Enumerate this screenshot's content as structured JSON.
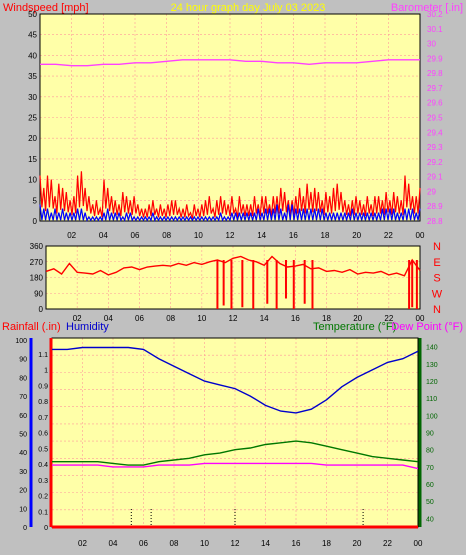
{
  "colors": {
    "background": "#c0c0c0",
    "plot_bg": "#ffffa8",
    "grid": "#ff9a9a",
    "frame": "#000000",
    "windspeed": "#ff0000",
    "windgust_fill": "#ff0000",
    "windavg_fill": "#0000ff",
    "wind_green": "#00aa00",
    "barometer": "#ff40ff",
    "title": "#ffff00",
    "direction": "#ff0000",
    "rainfall": "#ff0000",
    "humidity": "#0000cc",
    "temperature": "#007700",
    "dewpoint": "#ff00ff",
    "temp_axis": "#006600",
    "rain_axis": "#ff0000",
    "humidity_axis": "#0000ff"
  },
  "header": {
    "windspeed_label": "Windspeed [mph]",
    "title": "24 hour graph day   July 03 2023",
    "barometer_label": "Barometer [.in]"
  },
  "chart_data": [
    {
      "type": "line",
      "name": "wind-barometer",
      "x_ticks": [
        "02",
        "04",
        "06",
        "08",
        "10",
        "12",
        "14",
        "16",
        "18",
        "20",
        "22",
        "00"
      ],
      "y_left": {
        "label": "Windspeed [mph]",
        "ylim": [
          0,
          50
        ],
        "ticks": [
          "0",
          "5",
          "10",
          "15",
          "20",
          "25",
          "30",
          "35",
          "40",
          "45",
          "50"
        ]
      },
      "y_right": {
        "label": "Barometer [.in]",
        "ylim": [
          28.8,
          30.2
        ],
        "ticks": [
          "28.8",
          "28.9",
          "29",
          "29.1",
          "29.2",
          "29.3",
          "29.4",
          "29.5",
          "29.6",
          "29.7",
          "29.8",
          "29.9",
          "30",
          "30.1",
          "30.2"
        ]
      },
      "gust_peaks": [
        11,
        8,
        11,
        10,
        6,
        9,
        8,
        7,
        5,
        6,
        11,
        12,
        8,
        6,
        4,
        5,
        3,
        10,
        8,
        6,
        5,
        4,
        7,
        6,
        5,
        6,
        4,
        3,
        3,
        4,
        5,
        3,
        4,
        3,
        4,
        5,
        5,
        3,
        3,
        4,
        2,
        4,
        3,
        4,
        5,
        6,
        3,
        5,
        6,
        5,
        4,
        6,
        3,
        6,
        4,
        4,
        4,
        6,
        4,
        6,
        6,
        4,
        6,
        6,
        8,
        7,
        5,
        5,
        6,
        8,
        6,
        9,
        7,
        8,
        7,
        5,
        7,
        6,
        8,
        9,
        7,
        5,
        4,
        5,
        6,
        5,
        4,
        6,
        4,
        6,
        6,
        5,
        7,
        5,
        7,
        6,
        5,
        11,
        9,
        6,
        6,
        8
      ],
      "avg_peaks": [
        4,
        3,
        3,
        2,
        3,
        2,
        3,
        2,
        2,
        2,
        3,
        3,
        2,
        1,
        1,
        1,
        1,
        2,
        3,
        2,
        2,
        2,
        1,
        2,
        2,
        1,
        1,
        1,
        1,
        1,
        2,
        1,
        1,
        1,
        1,
        1,
        1,
        1,
        1,
        1,
        1,
        1,
        1,
        1,
        1,
        1,
        1,
        1,
        2,
        1,
        1,
        2,
        2,
        2,
        2,
        2,
        2,
        2,
        3,
        2,
        3,
        3,
        3,
        4,
        3,
        2,
        4,
        4,
        3,
        3,
        3,
        3,
        3,
        3,
        3,
        3,
        2,
        2,
        2,
        2,
        2,
        2,
        2,
        3,
        2,
        2,
        2,
        2,
        2,
        2,
        2,
        3,
        3,
        3,
        3,
        2,
        2,
        3,
        3,
        3,
        2,
        3
      ],
      "barometer": {
        "x": [
          0,
          1,
          2,
          3,
          4,
          5,
          6,
          7,
          8,
          9,
          10,
          11,
          12,
          13,
          14,
          15,
          16,
          17,
          18,
          19,
          20,
          21,
          22,
          23,
          24
        ],
        "values": [
          29.86,
          29.86,
          29.85,
          29.85,
          29.86,
          29.86,
          29.87,
          29.87,
          29.88,
          29.89,
          29.89,
          29.89,
          29.89,
          29.88,
          29.88,
          29.87,
          29.87,
          29.86,
          29.87,
          29.87,
          29.87,
          29.88,
          29.89,
          29.89,
          29.89
        ]
      }
    },
    {
      "type": "line",
      "name": "wind-direction",
      "x_ticks": [
        "02",
        "04",
        "06",
        "08",
        "10",
        "12",
        "14",
        "16",
        "18",
        "20",
        "22",
        "00"
      ],
      "y_left": {
        "ylim": [
          0,
          360
        ],
        "ticks": [
          "0",
          "90",
          "180",
          "270",
          "360"
        ]
      },
      "y_right": {
        "ticks": [
          "N",
          "W",
          "S",
          "E",
          "N"
        ]
      },
      "x": [
        0,
        0.5,
        1,
        1.5,
        2,
        2.5,
        3,
        3.5,
        4,
        4.5,
        5,
        5.5,
        6,
        6.5,
        7,
        7.5,
        8,
        8.5,
        9,
        9.5,
        10,
        10.5,
        11,
        11.5,
        12,
        12.5,
        13,
        13.5,
        14,
        14.5,
        15,
        15.5,
        16,
        16.5,
        17,
        17.5,
        18,
        18.5,
        19,
        19.5,
        20,
        20.5,
        21,
        21.5,
        22,
        22.5,
        23,
        23.5,
        24
      ],
      "values": [
        215,
        230,
        200,
        260,
        210,
        205,
        200,
        220,
        195,
        210,
        235,
        240,
        225,
        240,
        245,
        250,
        245,
        260,
        250,
        265,
        255,
        270,
        280,
        265,
        290,
        300,
        280,
        270,
        250,
        300,
        260,
        240,
        245,
        255,
        230,
        235,
        215,
        220,
        210,
        225,
        200,
        210,
        205,
        215,
        195,
        205,
        190,
        280,
        220
      ],
      "spike_x": [
        11.0,
        11.4,
        11.9,
        12.6,
        13.3,
        14.2,
        14.8,
        15.4,
        15.9,
        16.6,
        17.1,
        23.3,
        23.5,
        23.8
      ],
      "spike_to": [
        0,
        20,
        0,
        10,
        0,
        30,
        0,
        60,
        0,
        30,
        0,
        0,
        10,
        0
      ]
    },
    {
      "type": "line",
      "name": "temp-humidity-rain",
      "header": {
        "rainfall": "Rainfall (.in)",
        "humidity": "Humidity",
        "temperature": "Temperature (°F)",
        "dewpoint": "Dew Point (°F)"
      },
      "x_ticks": [
        "02",
        "04",
        "06",
        "08",
        "10",
        "12",
        "14",
        "16",
        "18",
        "20",
        "22",
        "00"
      ],
      "humidity_axis": {
        "ylim": [
          0,
          100
        ],
        "ticks": [
          "0",
          "10",
          "20",
          "30",
          "40",
          "50",
          "60",
          "70",
          "80",
          "90",
          "100"
        ]
      },
      "rain_axis": {
        "ylim": [
          0,
          1.2
        ],
        "ticks": [
          "0",
          "0.1",
          "0.2",
          "0.3",
          "0.4",
          "0.5",
          "0.6",
          "0.7",
          "0.8",
          "0.9",
          "1",
          "1.1"
        ]
      },
      "temp_axis": {
        "ylim": [
          35,
          145
        ],
        "ticks": [
          "40",
          "50",
          "60",
          "70",
          "80",
          "90",
          "100",
          "110",
          "120",
          "130",
          "140"
        ]
      },
      "x": [
        0,
        1,
        2,
        3,
        4,
        5,
        6,
        7,
        8,
        9,
        10,
        11,
        12,
        13,
        14,
        15,
        16,
        17,
        18,
        19,
        20,
        21,
        22,
        23,
        24
      ],
      "humidity": [
        95,
        95,
        96,
        96,
        96,
        96,
        95,
        90,
        86,
        82,
        78,
        76,
        74,
        70,
        65,
        62,
        61,
        63,
        68,
        75,
        80,
        84,
        88,
        90,
        94
      ],
      "temperature": [
        73,
        73,
        73,
        73,
        72,
        71,
        71,
        73,
        74,
        75,
        77,
        78,
        80,
        81,
        83,
        84,
        85,
        84,
        82,
        80,
        78,
        76,
        75,
        74,
        73
      ],
      "dewpoint": [
        71,
        71,
        71,
        71,
        70,
        70,
        70,
        71,
        71,
        71,
        72,
        72,
        72,
        72,
        72,
        72,
        72,
        72,
        71,
        71,
        71,
        71,
        71,
        71,
        69
      ],
      "rain": [
        0,
        0,
        0,
        0,
        0,
        0,
        0,
        0,
        0,
        0,
        0,
        0,
        0,
        0,
        0,
        0,
        0,
        0,
        0,
        0,
        0,
        0,
        0,
        0,
        0
      ],
      "markers_x": [
        5.2,
        6.5,
        12.0,
        20.4
      ]
    }
  ]
}
